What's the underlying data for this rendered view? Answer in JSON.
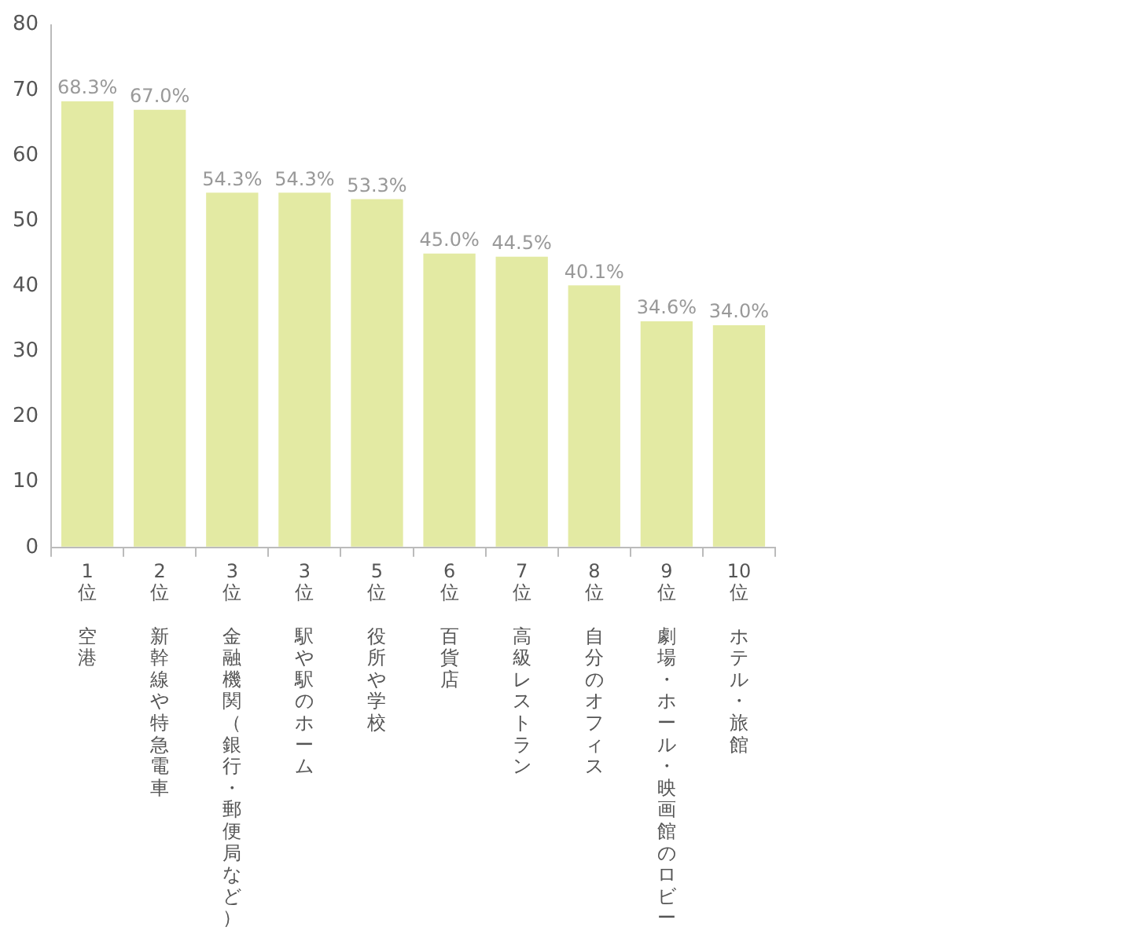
{
  "chart_data": {
    "type": "bar",
    "categories": [
      "1位空港",
      "2位新幹線や特急電車",
      "3位金融機関（銀行・郵便局など）",
      "3位駅や駅のホーム",
      "5位役所や学校",
      "6位百貨店",
      "7位高級レストラン",
      "8位自分のオフィス",
      "9位劇場・ホール・映画館のロビー",
      "10位ホテル・旅館"
    ],
    "values": [
      68.3,
      67.0,
      54.3,
      54.3,
      53.3,
      45.0,
      44.5,
      40.1,
      34.6,
      34.0
    ],
    "value_labels": [
      "68.3%",
      "67.0%",
      "54.3%",
      "54.3%",
      "53.3%",
      "45.0%",
      "44.5%",
      "40.1%",
      "34.6%",
      "34.0%"
    ],
    "color": "#e3eaa3",
    "ylim": [
      0,
      80
    ],
    "yticks": [
      0,
      10,
      20,
      30,
      40,
      50,
      60,
      70,
      80
    ],
    "grid": false,
    "legend": false
  }
}
